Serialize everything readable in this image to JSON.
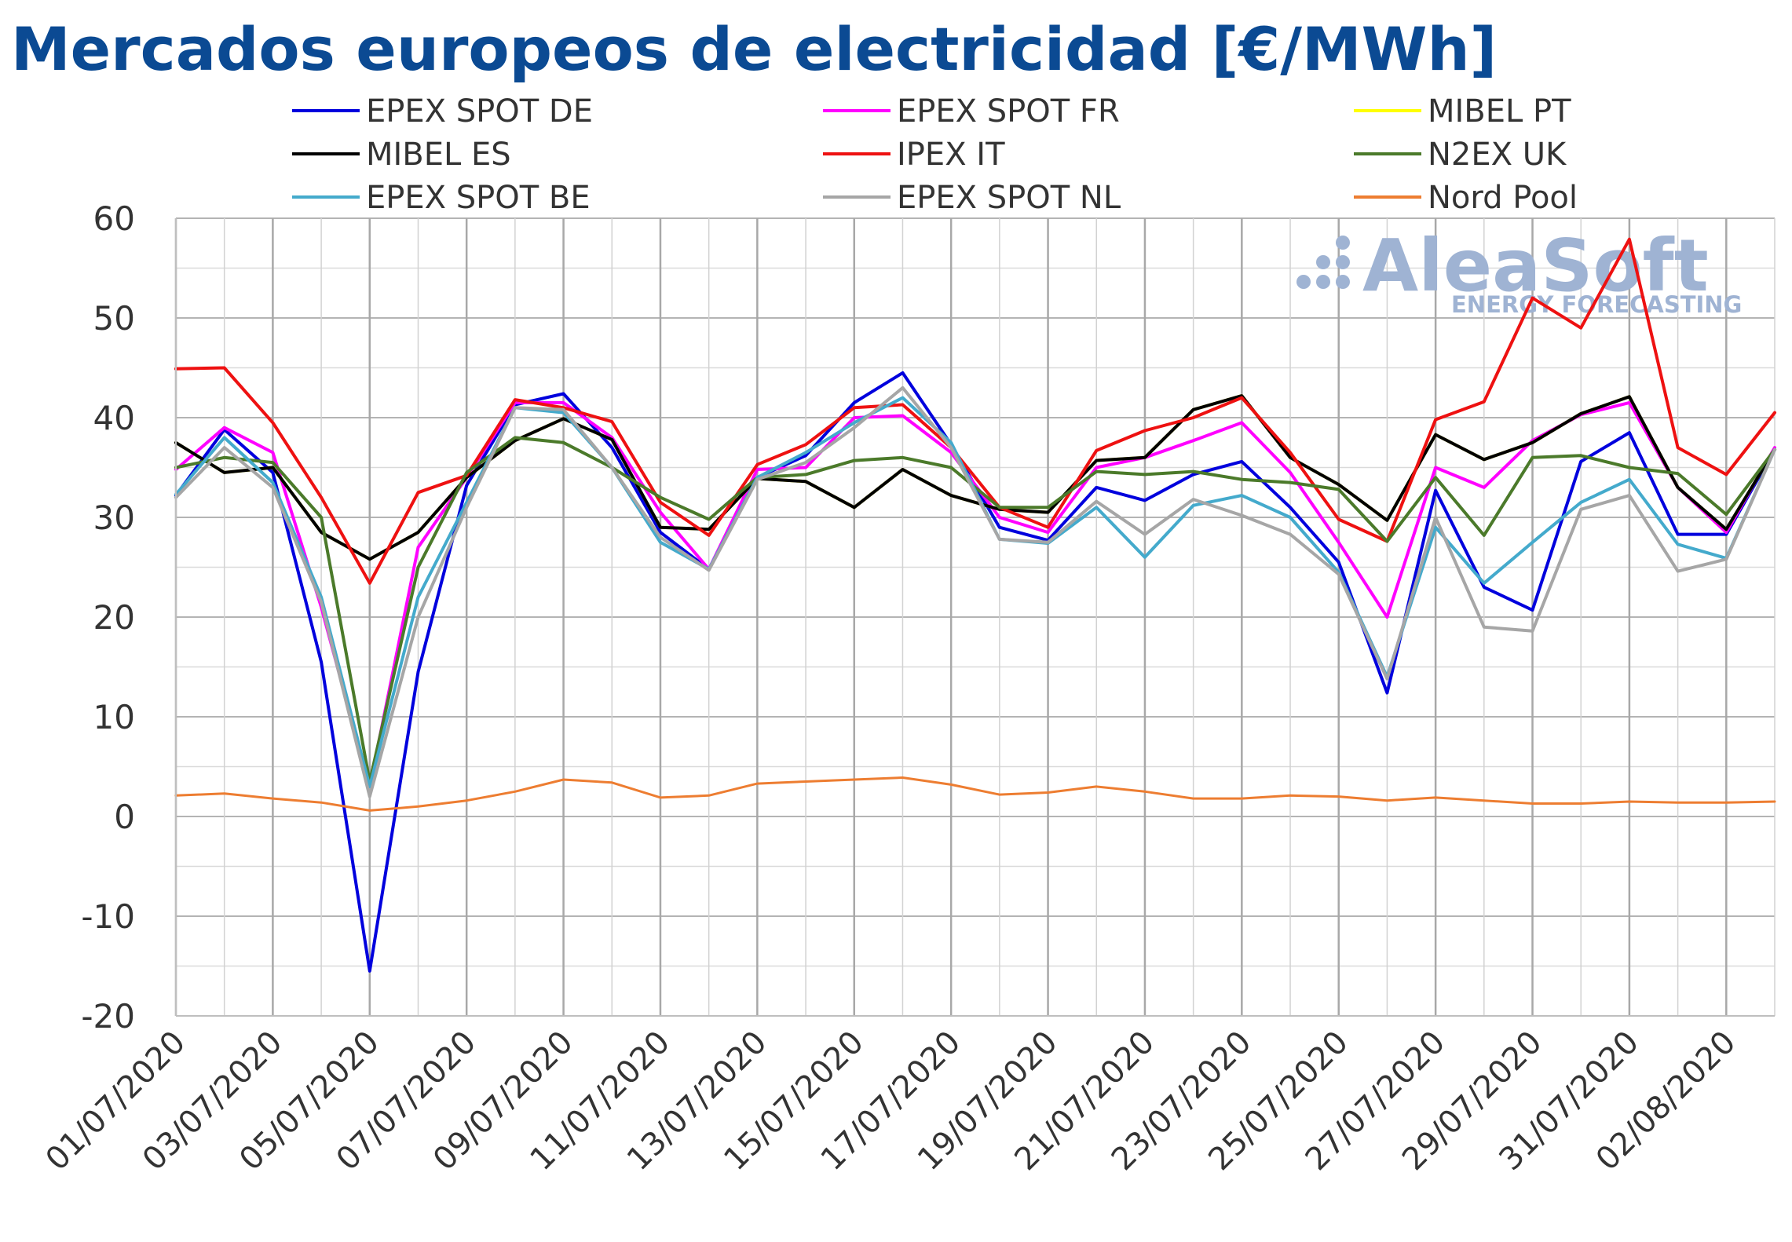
{
  "chart_data": {
    "type": "line",
    "title": "Mercados europeos de electricidad [€/MWh]",
    "ylim": [
      -20,
      60
    ],
    "yticks": [
      "60",
      "50",
      "40",
      "30",
      "20",
      "10",
      "0",
      "-10",
      "-20"
    ],
    "grid": true,
    "legend_position": "top",
    "categories": [
      "01/07/2020",
      "02/07/2020",
      "03/07/2020",
      "04/07/2020",
      "05/07/2020",
      "06/07/2020",
      "07/07/2020",
      "08/07/2020",
      "09/07/2020",
      "10/07/2020",
      "11/07/2020",
      "12/07/2020",
      "13/07/2020",
      "14/07/2020",
      "15/07/2020",
      "16/07/2020",
      "17/07/2020",
      "18/07/2020",
      "19/07/2020",
      "20/07/2020",
      "21/07/2020",
      "22/07/2020",
      "23/07/2020",
      "24/07/2020",
      "25/07/2020",
      "26/07/2020",
      "27/07/2020",
      "28/07/2020",
      "29/07/2020",
      "30/07/2020",
      "31/07/2020",
      "01/08/2020",
      "02/08/2020",
      "03/08/2020"
    ],
    "xtick_labels": [
      "01/07/2020",
      "03/07/2020",
      "05/07/2020",
      "07/07/2020",
      "09/07/2020",
      "11/07/2020",
      "13/07/2020",
      "15/07/2020",
      "17/07/2020",
      "19/07/2020",
      "21/07/2020",
      "23/07/2020",
      "25/07/2020",
      "27/07/2020",
      "29/07/2020",
      "31/07/2020",
      "02/08/2020"
    ],
    "series": [
      {
        "name": "EPEX SPOT DE",
        "color": "#0000DD",
        "values": [
          32.2,
          38.8,
          34.5,
          15.5,
          -15.5,
          14.5,
          33.2,
          41.3,
          42.4,
          37.0,
          28.5,
          24.8,
          34.0,
          36.2,
          41.5,
          44.5,
          37.3,
          29.0,
          27.7,
          33.0,
          31.7,
          34.3,
          35.6,
          31.0,
          25.5,
          12.4,
          32.7,
          23.0,
          20.7,
          35.6,
          38.5,
          28.3,
          28.3,
          36.8
        ]
      },
      {
        "name": "EPEX SPOT FR",
        "color": "#FF00FF",
        "values": [
          34.8,
          39.0,
          36.5,
          21.0,
          3.0,
          27.0,
          34.0,
          41.5,
          41.5,
          38.0,
          30.5,
          24.8,
          34.8,
          35.0,
          40.0,
          40.2,
          36.5,
          30.0,
          28.5,
          35.0,
          36.0,
          37.7,
          39.5,
          34.5,
          27.5,
          20.0,
          35.0,
          33.0,
          37.7,
          40.3,
          41.5,
          33.0,
          28.5,
          37.0
        ]
      },
      {
        "name": "MIBEL PT",
        "color": "#FFFF00",
        "values": [
          37.5,
          34.5,
          35.0,
          28.5,
          25.8,
          28.5,
          34.0,
          37.7,
          39.9,
          37.8,
          29.0,
          28.8,
          33.9,
          33.6,
          31.0,
          34.8,
          32.2,
          30.8,
          30.5,
          35.7,
          36.0,
          40.8,
          42.2,
          36.0,
          33.3,
          29.7,
          38.3,
          35.8,
          37.5,
          40.4,
          42.1,
          33.0,
          28.8,
          36.8
        ]
      },
      {
        "name": "MIBEL ES",
        "color": "#000000",
        "values": [
          37.5,
          34.5,
          35.0,
          28.5,
          25.8,
          28.5,
          34.0,
          37.7,
          39.9,
          37.8,
          29.0,
          28.8,
          33.9,
          33.6,
          31.0,
          34.8,
          32.2,
          30.8,
          30.5,
          35.7,
          36.0,
          40.8,
          42.2,
          36.0,
          33.3,
          29.7,
          38.3,
          35.8,
          37.5,
          40.4,
          42.1,
          33.0,
          28.8,
          36.8
        ]
      },
      {
        "name": "IPEX IT",
        "color": "#EE1111",
        "values": [
          44.9,
          45.0,
          39.5,
          32.0,
          23.4,
          32.5,
          34.2,
          41.8,
          41.0,
          39.6,
          31.5,
          28.2,
          35.3,
          37.3,
          41.0,
          41.3,
          37.0,
          31.0,
          29.0,
          36.7,
          38.7,
          40.0,
          42.0,
          36.5,
          29.8,
          27.6,
          39.8,
          41.6,
          52.0,
          49.0,
          57.9,
          37.0,
          34.3,
          40.5
        ]
      },
      {
        "name": "N2EX UK",
        "color": "#4B7A2A",
        "values": [
          35.0,
          36.0,
          35.5,
          30.0,
          3.5,
          25.0,
          34.5,
          38.0,
          37.5,
          35.0,
          32.0,
          29.8,
          34.0,
          34.3,
          35.7,
          36.0,
          35.0,
          31.0,
          31.0,
          34.6,
          34.3,
          34.6,
          33.8,
          33.5,
          32.8,
          27.6,
          34.0,
          28.2,
          36.0,
          36.2,
          35.0,
          34.4,
          30.3,
          36.8
        ]
      },
      {
        "name": "EPEX SPOT BE",
        "color": "#44AACC",
        "values": [
          32.3,
          38.0,
          33.5,
          22.0,
          3.0,
          22.0,
          31.5,
          41.0,
          40.5,
          35.0,
          27.5,
          24.8,
          34.0,
          36.5,
          39.5,
          42.0,
          37.5,
          27.8,
          27.4,
          31.0,
          26.0,
          31.2,
          32.2,
          30.0,
          24.5,
          14.0,
          29.0,
          23.4,
          27.5,
          31.5,
          33.8,
          27.3,
          25.9,
          36.8
        ]
      },
      {
        "name": "EPEX SPOT NL",
        "color": "#A6A6A6",
        "values": [
          32.0,
          37.0,
          33.0,
          21.5,
          2.0,
          20.0,
          31.0,
          41.0,
          40.8,
          35.0,
          28.0,
          24.7,
          33.8,
          35.5,
          39.0,
          43.0,
          37.0,
          27.8,
          27.5,
          31.6,
          28.3,
          31.8,
          30.2,
          28.3,
          24.3,
          13.8,
          30.0,
          19.0,
          18.6,
          30.8,
          32.2,
          24.6,
          25.8,
          36.8
        ]
      },
      {
        "name": "Nord Pool",
        "color": "#ED7D31",
        "values": [
          2.1,
          2.3,
          1.8,
          1.4,
          0.6,
          1.0,
          1.6,
          2.5,
          3.7,
          3.4,
          1.9,
          2.1,
          3.3,
          3.5,
          3.7,
          3.9,
          3.2,
          2.2,
          2.4,
          3.0,
          2.5,
          1.8,
          1.8,
          2.1,
          2.0,
          1.6,
          1.9,
          1.6,
          1.3,
          1.3,
          1.5,
          1.4,
          1.4,
          1.5
        ]
      }
    ]
  },
  "watermark": {
    "brand": "AleaSoft",
    "tagline": "ENERGY FORECASTING"
  }
}
